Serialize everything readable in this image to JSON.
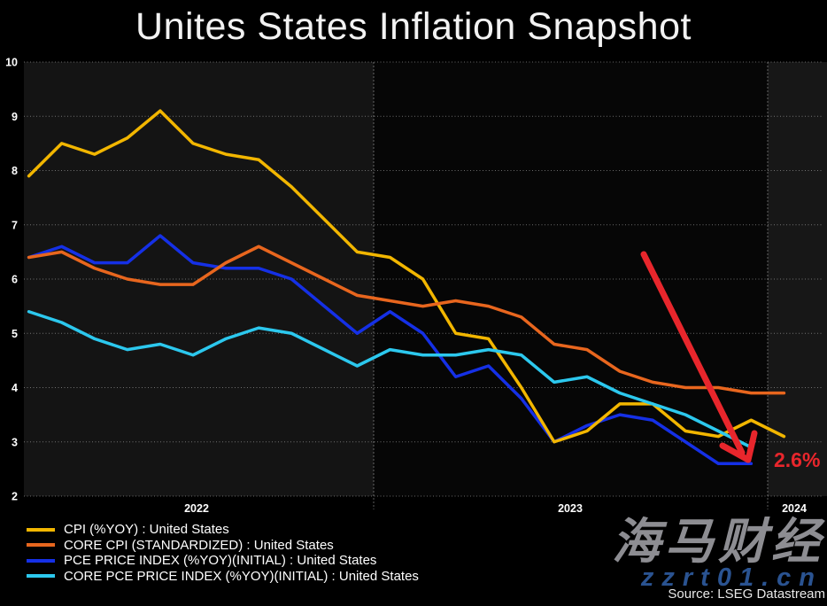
{
  "title": "Unites States Inflation Snapshot",
  "source": "Source: LSEG Datastream",
  "watermark": {
    "brand": "海马财经",
    "site": "zzrt01.cn"
  },
  "annotation": {
    "label": "2.6%",
    "color": "#e8262c"
  },
  "colors": {
    "background": "#000000",
    "band_2022": "#141414",
    "band_2023": "#060606",
    "band_2024": "#171717",
    "grid": "#cfcfcf",
    "tick_text": "#ffffff",
    "title_text": "#f2f2f2",
    "arrow": "#e8262c",
    "watermark_gray": "#8d8d92",
    "watermark_blue": "#2a5391"
  },
  "chart_data": {
    "type": "line",
    "x_monthly": [
      "2022-02",
      "2022-03",
      "2022-04",
      "2022-05",
      "2022-06",
      "2022-07",
      "2022-08",
      "2022-09",
      "2022-10",
      "2022-11",
      "2022-12",
      "2023-01",
      "2023-02",
      "2023-03",
      "2023-04",
      "2023-05",
      "2023-06",
      "2023-07",
      "2023-08",
      "2023-09",
      "2023-10",
      "2023-11",
      "2023-12",
      "2024-01"
    ],
    "ylim": [
      2,
      10
    ],
    "yticks": [
      2,
      3,
      4,
      5,
      6,
      7,
      8,
      9,
      10
    ],
    "x_year_labels": [
      "2022",
      "2023",
      "2024"
    ],
    "grid": "dotted",
    "legend_position": "bottom-left",
    "series": [
      {
        "name": "CPI (%YOY) : United States",
        "color": "#f2b600",
        "values": [
          7.9,
          8.5,
          8.3,
          8.6,
          9.1,
          8.5,
          8.3,
          8.2,
          7.7,
          7.1,
          6.5,
          6.4,
          6.0,
          5.0,
          4.9,
          4.0,
          3.0,
          3.2,
          3.7,
          3.7,
          3.2,
          3.1,
          3.4,
          3.1
        ]
      },
      {
        "name": "CORE CPI (STANDARDIZED) : United States",
        "color": "#e8661e",
        "values": [
          6.4,
          6.5,
          6.2,
          6.0,
          5.9,
          5.9,
          6.3,
          6.6,
          6.3,
          6.0,
          5.7,
          5.6,
          5.5,
          5.6,
          5.5,
          5.3,
          4.8,
          4.7,
          4.3,
          4.1,
          4.0,
          4.0,
          3.9,
          3.9
        ]
      },
      {
        "name": "PCE PRICE INDEX (%YOY)(INITIAL) : United States",
        "color": "#1530e6",
        "values": [
          6.4,
          6.6,
          6.3,
          6.3,
          6.8,
          6.3,
          6.2,
          6.2,
          6.0,
          5.5,
          5.0,
          5.4,
          5.0,
          4.2,
          4.4,
          3.8,
          3.0,
          3.3,
          3.5,
          3.4,
          3.0,
          2.6,
          2.6,
          null
        ]
      },
      {
        "name": "CORE PCE PRICE INDEX (%YOY)(INITIAL) : United States",
        "color": "#2cc8ee",
        "values": [
          5.4,
          5.2,
          4.9,
          4.7,
          4.8,
          4.6,
          4.9,
          5.1,
          5.0,
          4.7,
          4.4,
          4.7,
          4.6,
          4.6,
          4.7,
          4.6,
          4.1,
          4.2,
          3.9,
          3.7,
          3.5,
          3.2,
          2.9,
          null
        ]
      }
    ]
  }
}
